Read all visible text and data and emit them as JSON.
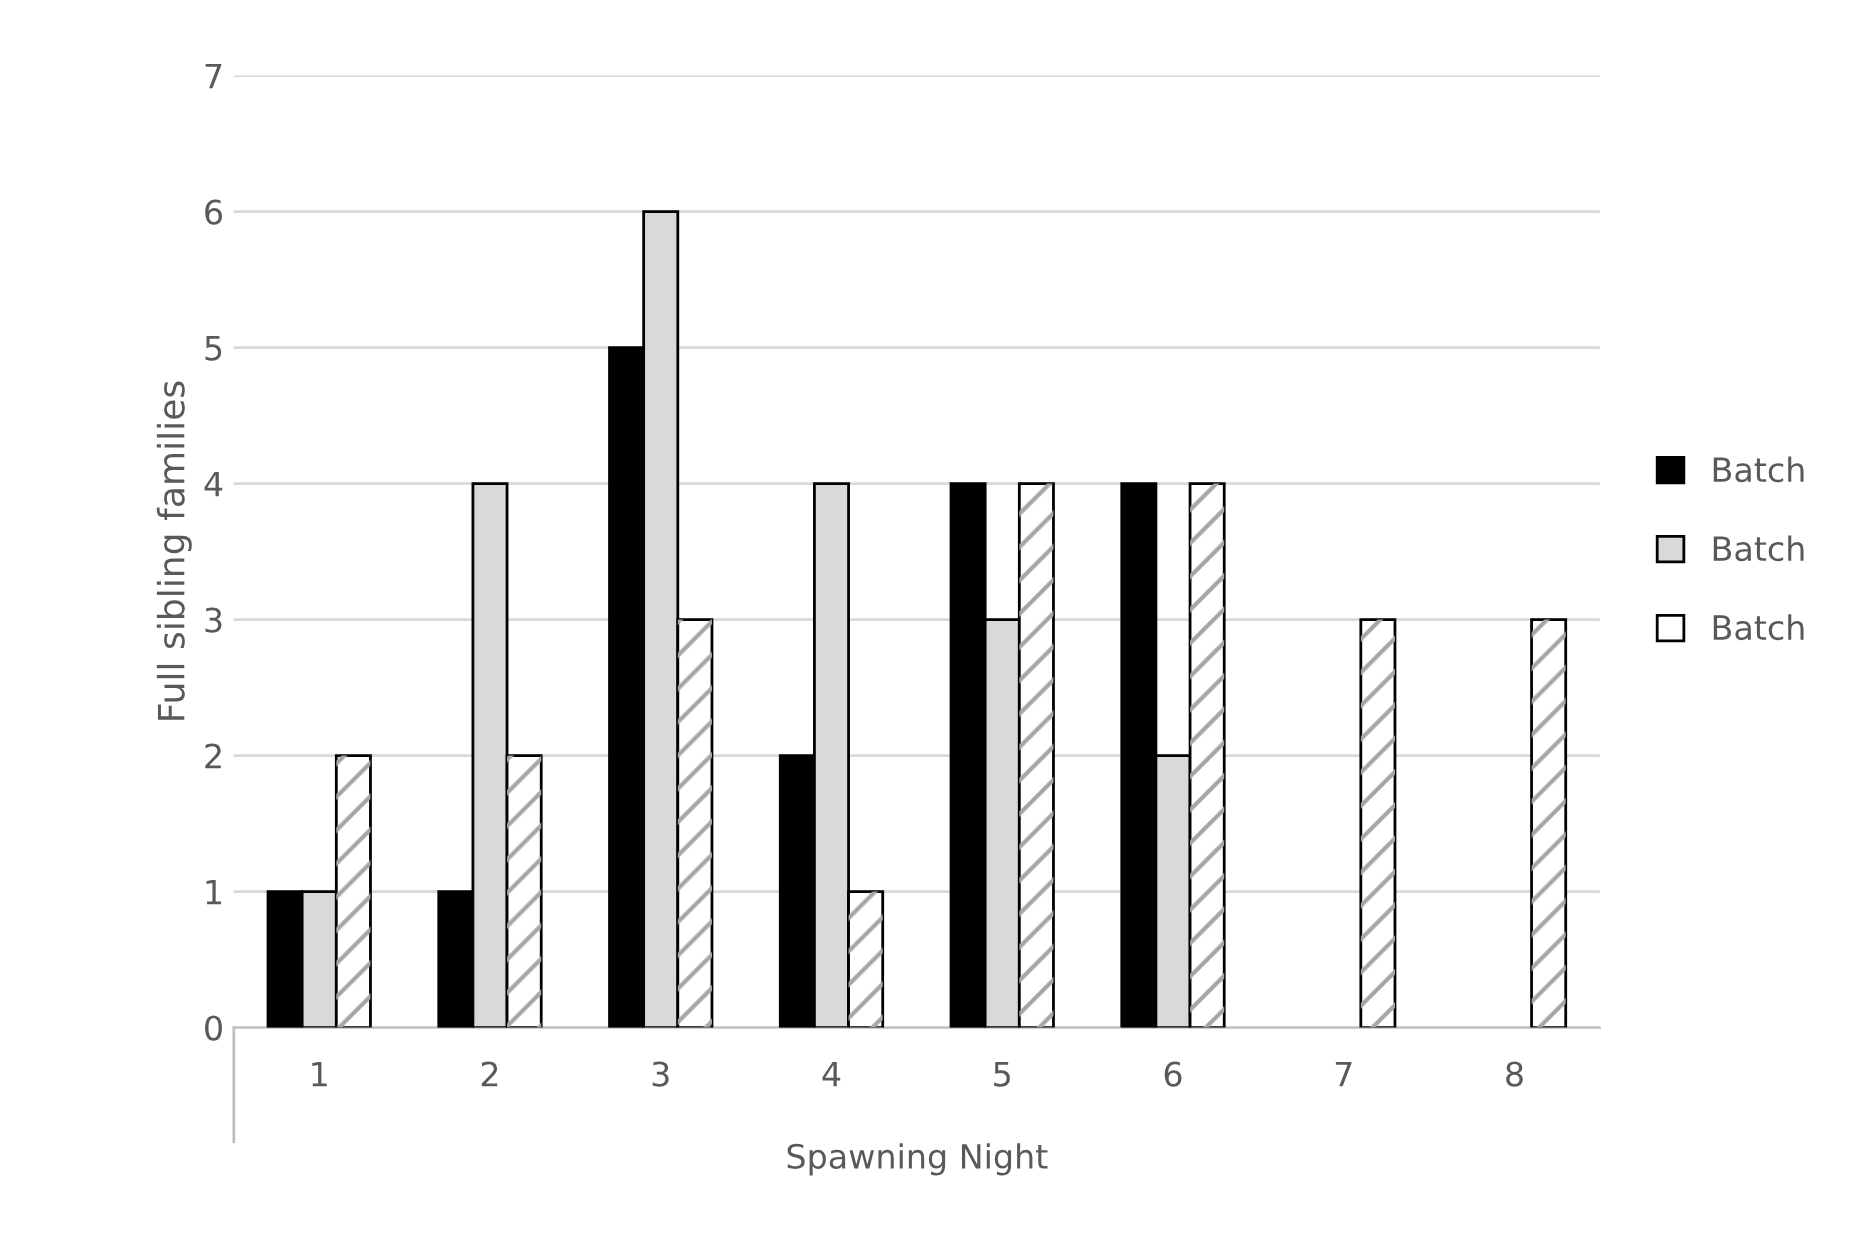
{
  "chart_data": {
    "type": "bar",
    "xlabel": "Spawning Night",
    "ylabel": "Full sibling families",
    "categories": [
      "1",
      "2",
      "3",
      "4",
      "5",
      "6",
      "7",
      "8"
    ],
    "series": [
      {
        "name": "Batch",
        "color": "#000000",
        "values": [
          1,
          1,
          5,
          2,
          4,
          4,
          null,
          null
        ]
      },
      {
        "name": "Batch",
        "color": "#d9d9d9",
        "values": [
          1,
          4,
          6,
          4,
          3,
          2,
          null,
          null
        ]
      },
      {
        "name": "Batch",
        "color": "#ffffff",
        "values": [
          2,
          2,
          3,
          1,
          4,
          4,
          3,
          3
        ]
      }
    ],
    "ylim": [
      0,
      7
    ],
    "yticks": [
      0,
      1,
      2,
      3,
      4,
      5,
      6,
      7
    ],
    "grid": "y",
    "legend": "right"
  }
}
